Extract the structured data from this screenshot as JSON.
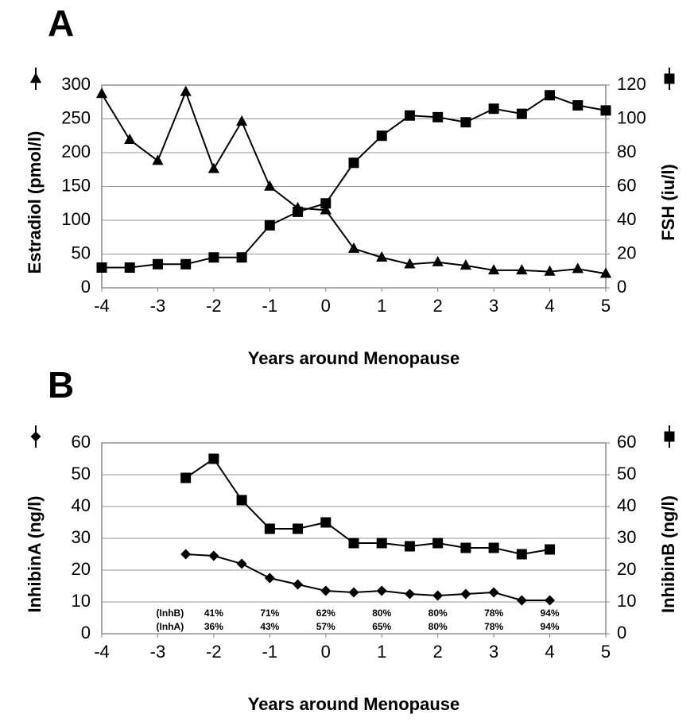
{
  "chart_data": [
    {
      "type": "line",
      "panel": "A",
      "x_label": "Years around Menopause",
      "y_label": "Estradiol (pmol/l)",
      "y2_label": "FSH (iu/l)",
      "x": [
        -4,
        -3.5,
        -3,
        -2.5,
        -2,
        -1.5,
        -1,
        -0.5,
        0,
        0.5,
        1,
        1.5,
        2,
        2.5,
        3,
        3.5,
        4,
        4.5,
        5
      ],
      "series": [
        {
          "name": "Estradiol",
          "color": "#000000",
          "marker": "triangle",
          "values": [
            287,
            219,
            188,
            290,
            176,
            246,
            150,
            118,
            115,
            58,
            45,
            35,
            38,
            33,
            26,
            26,
            24,
            28,
            21
          ]
        },
        {
          "name": "FSH",
          "color": "#000000",
          "marker": "square",
          "axis": "y2",
          "values": [
            12,
            12,
            14,
            14,
            18,
            18,
            37,
            45,
            50,
            74,
            90,
            102,
            101,
            98,
            106,
            103,
            114,
            108,
            105
          ]
        }
      ],
      "xlim": [
        -4,
        5
      ],
      "xticks": [
        -4,
        -3,
        -2,
        -1,
        0,
        1,
        2,
        3,
        4,
        5
      ],
      "ylim": [
        0,
        300
      ],
      "yticks": [
        0,
        50,
        100,
        150,
        200,
        250,
        300
      ],
      "y2lim": [
        0,
        120
      ],
      "y2ticks": [
        0,
        20,
        40,
        60,
        80,
        100,
        120
      ],
      "grid": true
    },
    {
      "type": "line",
      "panel": "B",
      "x_label": "Years around Menopause",
      "y_label": "InhibinA (ng/l)",
      "y2_label": "InhibinB (ng/l)",
      "x": [
        -2.5,
        -2,
        -1.5,
        -1,
        -0.5,
        0,
        0.5,
        1,
        1.5,
        2,
        2.5,
        3,
        3.5,
        4
      ],
      "series": [
        {
          "name": "InhibinA",
          "color": "#000000",
          "marker": "diamond",
          "values": [
            25,
            24.5,
            22,
            17.5,
            15.5,
            13.5,
            13,
            13.5,
            12.5,
            12,
            12.5,
            13,
            10.5,
            10.5
          ]
        },
        {
          "name": "InhibinB",
          "color": "#000000",
          "marker": "square",
          "axis": "y2",
          "values": [
            49,
            55,
            42,
            33,
            33,
            35,
            28.5,
            28.5,
            27.5,
            28.5,
            27,
            27,
            25,
            26.5
          ]
        }
      ],
      "xlim": [
        -4,
        5
      ],
      "xticks": [
        -4,
        -3,
        -2,
        -1,
        0,
        1,
        2,
        3,
        4,
        5
      ],
      "ylim": [
        0,
        60
      ],
      "yticks": [
        0,
        10,
        20,
        30,
        40,
        50,
        60
      ],
      "y2lim": [
        0,
        60
      ],
      "y2ticks": [
        0,
        10,
        20,
        30,
        40,
        50,
        60
      ],
      "grid": true,
      "annotations": {
        "row_labels": [
          "(InhB)",
          "(InhA)"
        ],
        "x": [
          -2,
          -1,
          0,
          1,
          2,
          3,
          4
        ],
        "rows": [
          [
            "41%",
            "71%",
            "62%",
            "80%",
            "80%",
            "78%",
            "94%"
          ],
          [
            "36%",
            "43%",
            "57%",
            "65%",
            "80%",
            "78%",
            "94%"
          ]
        ]
      }
    }
  ]
}
